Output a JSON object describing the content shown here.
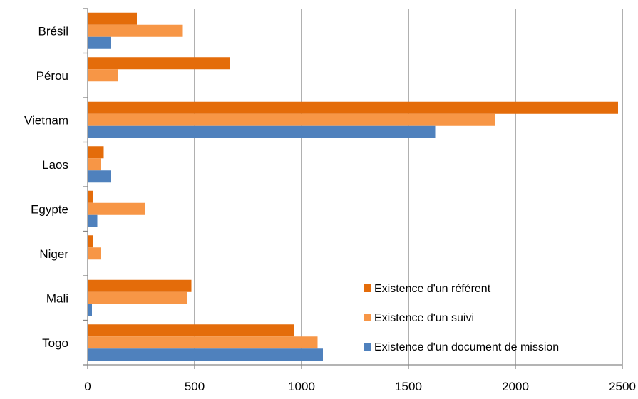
{
  "chart_data": {
    "type": "bar",
    "orientation": "horizontal",
    "categories": [
      "Brésil",
      "Pérou",
      "Vietnam",
      "Laos",
      "Egypte",
      "Niger",
      "Mali",
      "Togo"
    ],
    "series": [
      {
        "name": "Existence d'un référent",
        "color": "#E46C0A",
        "values": [
          230,
          665,
          2480,
          75,
          25,
          25,
          485,
          965
        ]
      },
      {
        "name": "Existence d'un suivi",
        "color": "#F79646",
        "values": [
          445,
          140,
          1905,
          60,
          270,
          60,
          465,
          1075
        ]
      },
      {
        "name": "Existence d'un document de mission",
        "color": "#4F81BD",
        "values": [
          110,
          0,
          1625,
          110,
          45,
          0,
          20,
          1100
        ]
      }
    ],
    "x_ticks": [
      "0",
      "500",
      "1000",
      "1500",
      "2000",
      "2500"
    ],
    "xlim": [
      0,
      2500
    ],
    "grid": "vertical major gridlines",
    "legend_position": "bottom-right inside plot"
  }
}
